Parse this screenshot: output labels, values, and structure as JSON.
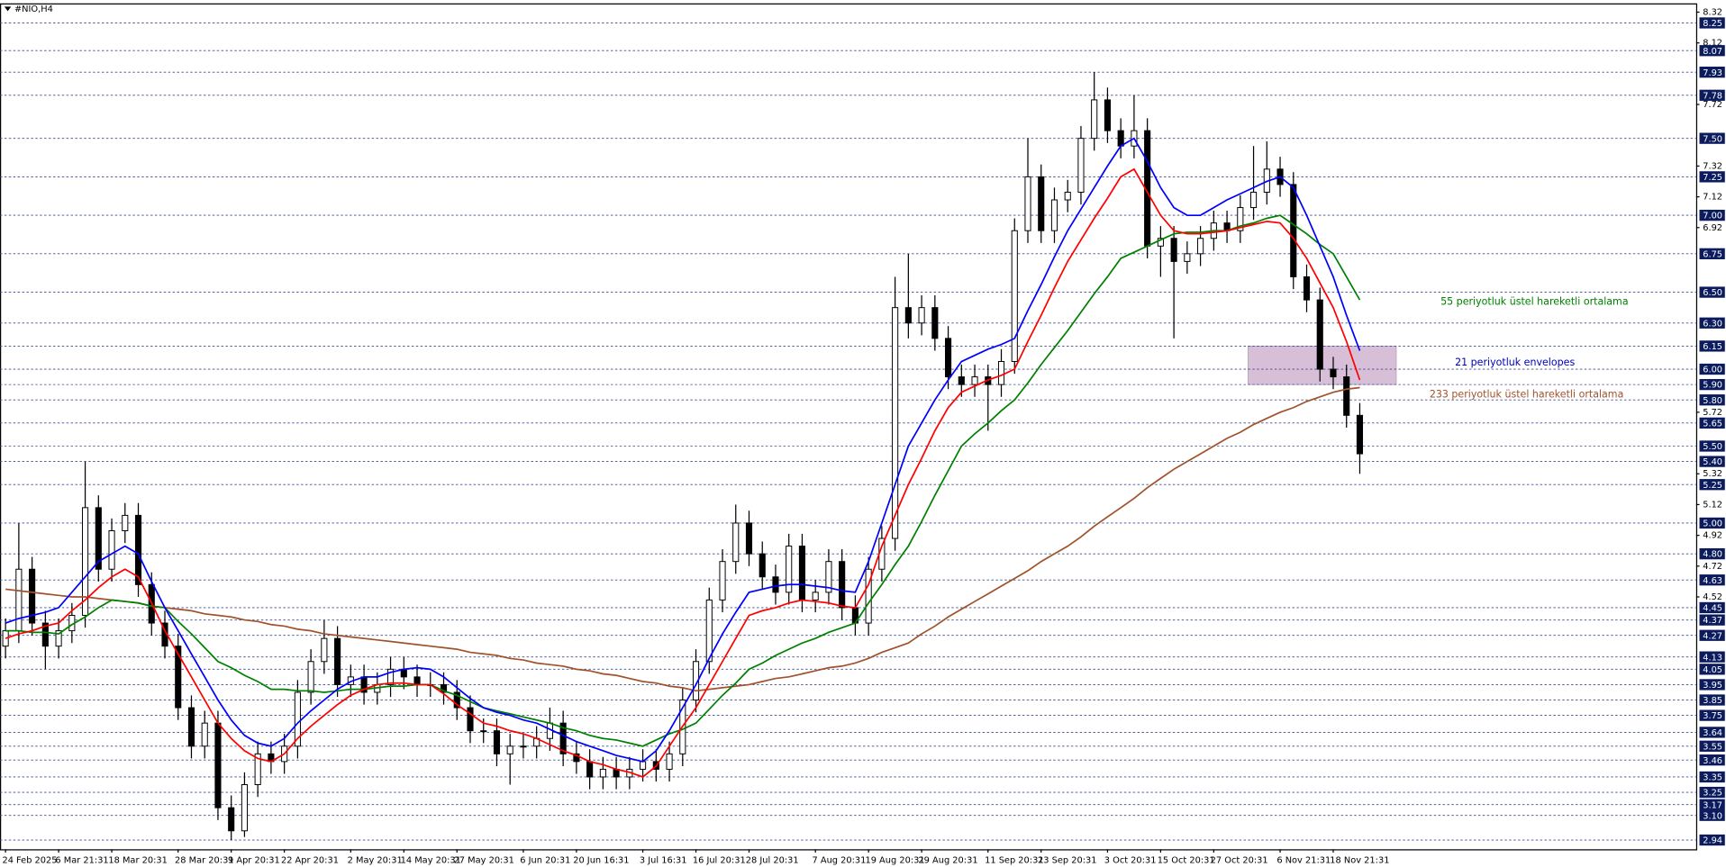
{
  "chart_data": {
    "type": "candlestick",
    "title": "#NIO,H4",
    "categories": [
      "24 Feb 2025",
      null,
      null,
      null,
      "6 Mar 21:31",
      null,
      null,
      null,
      "18 Mar 20:31",
      null,
      null,
      null,
      null,
      "28 Mar 20:31",
      null,
      null,
      null,
      "9 Apr 20:31",
      null,
      null,
      null,
      "22 Apr 20:31",
      null,
      null,
      null,
      null,
      "2 May 20:31",
      null,
      null,
      null,
      "14 May 20:31",
      null,
      null,
      null,
      "27 May 20:31",
      null,
      null,
      null,
      null,
      "6 Jun 20:31",
      null,
      null,
      null,
      "20 Jun 16:31",
      null,
      null,
      null,
      null,
      "3 Jul 16:31",
      null,
      null,
      null,
      "16 Jul 20:31",
      null,
      null,
      null,
      "28 Jul 20:31",
      null,
      null,
      null,
      null,
      "7 Aug 20:31",
      null,
      null,
      null,
      "19 Aug 20:31",
      null,
      null,
      null,
      "29 Aug 20:31",
      null,
      null,
      null,
      null,
      "11 Sep 20:31",
      null,
      null,
      null,
      "23 Sep 20:31",
      null,
      null,
      null,
      null,
      "3 Oct 20:31",
      null,
      null,
      null,
      "15 Oct 20:31",
      null,
      null,
      null,
      "27 Oct 20:31",
      null,
      null,
      null,
      null,
      "6 Nov 21:31",
      null,
      null,
      null,
      "18 Nov 21:31",
      null,
      null
    ],
    "open": [
      4.2,
      4.3,
      4.7,
      4.35,
      4.2,
      4.3,
      4.4,
      5.1,
      4.7,
      4.95,
      5.05,
      4.6,
      4.35,
      4.2,
      3.8,
      3.55,
      3.7,
      3.15,
      3.0,
      3.3,
      3.5,
      3.45,
      3.55,
      3.9,
      4.1,
      4.25,
      3.95,
      4.0,
      3.9,
      3.95,
      4.05,
      4.0,
      3.95,
      3.95,
      3.9,
      3.8,
      3.65,
      3.65,
      3.5,
      3.55,
      3.55,
      3.6,
      3.7,
      3.5,
      3.45,
      3.35,
      3.4,
      3.35,
      3.4,
      3.45,
      3.4,
      3.5,
      3.85,
      4.1,
      4.5,
      4.75,
      5.0,
      4.8,
      4.65,
      4.55,
      4.85,
      4.5,
      4.55,
      4.75,
      4.45,
      4.35,
      4.7,
      4.9,
      6.4,
      6.3,
      6.4,
      6.2,
      5.95,
      5.9,
      5.95,
      5.9,
      6.05,
      6.9,
      7.25,
      6.9,
      7.1,
      7.15,
      7.5,
      7.75,
      7.55,
      7.45,
      7.55,
      6.8,
      6.85,
      6.7,
      6.75,
      6.85,
      6.95,
      6.9,
      7.05,
      7.15,
      7.3,
      7.2,
      6.6,
      6.45,
      6.0,
      5.95,
      5.7
    ],
    "high": [
      4.38,
      5.0,
      4.78,
      4.43,
      4.38,
      4.48,
      5.4,
      5.18,
      5.03,
      5.13,
      5.13,
      4.68,
      4.43,
      4.28,
      3.88,
      3.78,
      3.78,
      3.23,
      3.38,
      3.58,
      3.58,
      3.63,
      3.98,
      4.18,
      4.37,
      4.33,
      4.08,
      4.08,
      4.03,
      4.13,
      4.13,
      4.08,
      4.03,
      4.03,
      3.98,
      3.88,
      3.73,
      3.73,
      3.63,
      3.63,
      3.68,
      3.8,
      3.78,
      3.58,
      3.53,
      3.48,
      3.48,
      3.48,
      3.53,
      3.53,
      3.58,
      3.93,
      4.18,
      4.58,
      4.83,
      5.12,
      5.08,
      4.88,
      4.73,
      4.93,
      4.93,
      4.63,
      4.83,
      4.83,
      4.53,
      4.78,
      4.98,
      6.6,
      6.75,
      6.48,
      6.48,
      6.28,
      6.03,
      6.03,
      6.03,
      6.13,
      6.98,
      7.5,
      7.33,
      7.18,
      7.23,
      7.58,
      7.93,
      7.83,
      7.63,
      7.78,
      7.63,
      6.93,
      6.93,
      6.83,
      6.93,
      7.03,
      7.03,
      7.13,
      7.45,
      7.48,
      7.38,
      7.28,
      6.68,
      6.53,
      6.08,
      6.03,
      5.78
    ],
    "low": [
      4.12,
      4.22,
      4.27,
      4.05,
      4.12,
      4.22,
      4.32,
      4.62,
      4.62,
      4.87,
      4.52,
      4.27,
      4.12,
      3.72,
      3.47,
      3.47,
      3.07,
      2.94,
      2.96,
      3.22,
      3.37,
      3.37,
      3.47,
      3.82,
      4.02,
      3.87,
      3.87,
      3.82,
      3.82,
      3.87,
      3.92,
      3.87,
      3.87,
      3.82,
      3.72,
      3.57,
      3.57,
      3.42,
      3.3,
      3.47,
      3.47,
      3.52,
      3.42,
      3.37,
      3.27,
      3.27,
      3.27,
      3.27,
      3.32,
      3.32,
      3.32,
      3.42,
      3.77,
      4.02,
      4.42,
      4.67,
      4.72,
      4.57,
      4.47,
      4.47,
      4.42,
      4.42,
      4.47,
      4.37,
      4.27,
      4.27,
      4.62,
      4.82,
      6.2,
      6.22,
      6.12,
      5.87,
      5.82,
      5.82,
      5.6,
      5.82,
      5.97,
      6.82,
      6.82,
      6.82,
      7.02,
      7.07,
      7.42,
      7.47,
      7.37,
      7.37,
      6.72,
      6.6,
      6.2,
      6.62,
      6.67,
      6.77,
      6.82,
      6.82,
      6.97,
      7.07,
      7.12,
      6.52,
      6.37,
      5.92,
      5.87,
      5.62,
      5.32
    ],
    "close": [
      4.3,
      4.7,
      4.35,
      4.2,
      4.3,
      4.4,
      5.1,
      4.7,
      4.95,
      5.05,
      4.6,
      4.35,
      4.2,
      3.8,
      3.55,
      3.7,
      3.15,
      3.0,
      3.3,
      3.5,
      3.45,
      3.55,
      3.9,
      4.1,
      4.25,
      3.95,
      4.0,
      3.9,
      3.95,
      4.05,
      4.0,
      3.95,
      3.95,
      3.9,
      3.8,
      3.65,
      3.65,
      3.5,
      3.55,
      3.55,
      3.6,
      3.7,
      3.5,
      3.45,
      3.35,
      3.4,
      3.35,
      3.4,
      3.45,
      3.4,
      3.5,
      3.85,
      4.1,
      4.5,
      4.75,
      5.0,
      4.8,
      4.65,
      4.55,
      4.85,
      4.5,
      4.55,
      4.75,
      4.45,
      4.35,
      4.7,
      4.9,
      6.4,
      6.3,
      6.4,
      6.2,
      5.95,
      5.9,
      5.95,
      5.9,
      6.05,
      6.9,
      7.25,
      6.9,
      7.1,
      7.15,
      7.5,
      7.75,
      7.55,
      7.45,
      7.55,
      6.8,
      6.85,
      6.7,
      6.75,
      6.85,
      6.95,
      6.9,
      7.05,
      7.15,
      7.3,
      7.2,
      6.6,
      6.45,
      6.0,
      5.95,
      5.7,
      5.45
    ],
    "bull_color": "#ffffff",
    "bear_color": "#000000",
    "lines": [
      {
        "name": "233 periyotluk üstel hareketli ortalama",
        "color": "#a0522d",
        "values": [
          4.57,
          4.56,
          4.55,
          4.54,
          4.53,
          4.52,
          4.52,
          4.51,
          4.5,
          4.49,
          4.48,
          4.46,
          4.45,
          4.44,
          4.43,
          4.41,
          4.4,
          4.39,
          4.37,
          4.36,
          4.34,
          4.33,
          4.31,
          4.3,
          4.28,
          4.27,
          4.26,
          4.25,
          4.24,
          4.23,
          4.22,
          4.21,
          4.2,
          4.19,
          4.18,
          4.16,
          4.15,
          4.14,
          4.12,
          4.11,
          4.09,
          4.08,
          4.07,
          4.05,
          4.04,
          4.02,
          4.01,
          3.99,
          3.97,
          3.96,
          3.94,
          3.93,
          3.91,
          3.92,
          3.93,
          3.94,
          3.95,
          3.97,
          3.99,
          4.0,
          4.02,
          4.04,
          4.06,
          4.07,
          4.09,
          4.12,
          4.16,
          4.19,
          4.22,
          4.28,
          4.33,
          4.39,
          4.44,
          4.49,
          4.54,
          4.59,
          4.64,
          4.69,
          4.75,
          4.8,
          4.85,
          4.91,
          4.98,
          5.04,
          5.1,
          5.16,
          5.23,
          5.29,
          5.35,
          5.4,
          5.45,
          5.5,
          5.55,
          5.59,
          5.64,
          5.68,
          5.72,
          5.75,
          5.79,
          5.82,
          5.85,
          5.87,
          5.88
        ]
      },
      {
        "name": "55 periyotluk üstel hareketli ortalama",
        "color": "#008000",
        "values": [
          4.3,
          4.3,
          4.29,
          4.29,
          4.28,
          4.34,
          4.39,
          4.45,
          4.5,
          4.49,
          4.48,
          4.46,
          4.45,
          4.36,
          4.28,
          4.19,
          4.1,
          4.06,
          4.01,
          3.97,
          3.92,
          3.92,
          3.91,
          3.91,
          3.9,
          3.91,
          3.92,
          3.92,
          3.93,
          3.94,
          3.94,
          3.95,
          3.95,
          3.91,
          3.88,
          3.84,
          3.8,
          3.78,
          3.76,
          3.74,
          3.72,
          3.7,
          3.67,
          3.65,
          3.62,
          3.6,
          3.59,
          3.57,
          3.55,
          3.59,
          3.63,
          3.66,
          3.7,
          3.79,
          3.88,
          3.96,
          4.05,
          4.09,
          4.14,
          4.18,
          4.22,
          4.25,
          4.29,
          4.32,
          4.35,
          4.48,
          4.6,
          4.73,
          4.85,
          5.01,
          5.18,
          5.34,
          5.5,
          5.58,
          5.65,
          5.73,
          5.8,
          5.91,
          6.03,
          6.14,
          6.25,
          6.37,
          6.49,
          6.6,
          6.72,
          6.76,
          6.8,
          6.84,
          6.88,
          6.89,
          6.89,
          6.9,
          6.9,
          6.93,
          6.95,
          6.98,
          7.0,
          6.94,
          6.88,
          6.81,
          6.75,
          6.6,
          6.45
        ]
      },
      {
        "color": "#ff0000",
        "values": [
          4.25,
          4.28,
          4.3,
          4.33,
          4.35,
          4.43,
          4.5,
          4.58,
          4.65,
          4.7,
          4.65,
          4.48,
          4.3,
          4.15,
          4.0,
          3.85,
          3.7,
          3.6,
          3.52,
          3.47,
          3.45,
          3.5,
          3.6,
          3.68,
          3.75,
          3.82,
          3.88,
          3.92,
          3.95,
          3.96,
          3.96,
          3.95,
          3.95,
          3.89,
          3.82,
          3.76,
          3.7,
          3.68,
          3.65,
          3.63,
          3.6,
          3.56,
          3.52,
          3.49,
          3.45,
          3.43,
          3.4,
          3.38,
          3.35,
          3.42,
          3.55,
          3.68,
          3.8,
          3.95,
          4.1,
          4.25,
          4.4,
          4.43,
          4.45,
          4.48,
          4.5,
          4.49,
          4.48,
          4.46,
          4.45,
          4.6,
          4.85,
          5.05,
          5.25,
          5.42,
          5.6,
          5.75,
          5.85,
          5.89,
          5.93,
          5.96,
          6.0,
          6.18,
          6.35,
          6.53,
          6.7,
          6.84,
          6.98,
          7.11,
          7.25,
          7.3,
          7.15,
          7.0,
          6.9,
          6.88,
          6.88,
          6.89,
          6.9,
          6.92,
          6.94,
          6.96,
          6.95,
          6.85,
          6.72,
          6.56,
          6.4,
          6.18,
          5.93
        ]
      },
      {
        "name": "21 periyotluk envelopes",
        "color": "#0000ff",
        "values": [
          4.35,
          4.38,
          4.4,
          4.42,
          4.45,
          4.55,
          4.65,
          4.75,
          4.8,
          4.85,
          4.8,
          4.62,
          4.45,
          4.3,
          4.15,
          4.0,
          3.85,
          3.72,
          3.62,
          3.57,
          3.55,
          3.6,
          3.7,
          3.78,
          3.85,
          3.92,
          3.97,
          4.0,
          4.0,
          4.03,
          4.05,
          4.06,
          4.05,
          4.0,
          3.93,
          3.86,
          3.8,
          3.77,
          3.75,
          3.72,
          3.7,
          3.66,
          3.62,
          3.58,
          3.55,
          3.52,
          3.49,
          3.47,
          3.45,
          3.52,
          3.65,
          3.8,
          3.95,
          4.12,
          4.28,
          4.42,
          4.55,
          4.57,
          4.59,
          4.6,
          4.6,
          4.59,
          4.58,
          4.56,
          4.55,
          4.75,
          5.0,
          5.25,
          5.5,
          5.65,
          5.8,
          5.93,
          6.05,
          6.09,
          6.13,
          6.16,
          6.2,
          6.38,
          6.55,
          6.73,
          6.9,
          7.04,
          7.18,
          7.32,
          7.45,
          7.5,
          7.35,
          7.18,
          7.05,
          7.0,
          7.0,
          7.05,
          7.1,
          7.14,
          7.18,
          7.22,
          7.25,
          7.18,
          7.0,
          6.8,
          6.6,
          6.35,
          6.12
        ]
      }
    ],
    "zone": {
      "from": 5.9,
      "to": 6.15,
      "color": "#d8bfd8"
    },
    "level_color": "#3a4a8c",
    "levels": [
      8.25,
      8.07,
      7.93,
      7.78,
      {
        "value": 7.5,
        "label": "7.50"
      },
      7.25,
      {
        "value": 7,
        "label": "7.00"
      },
      6.75,
      {
        "value": 6.5,
        "label": "6.50"
      },
      {
        "value": 6.3,
        "label": "6.30"
      },
      6.15,
      {
        "value": 6,
        "label": "6.00"
      },
      {
        "value": 5.9,
        "label": "5.90"
      },
      {
        "value": 5.8,
        "label": "5.80"
      },
      5.65,
      {
        "value": 5.5,
        "label": "5.50"
      },
      {
        "value": 5.4,
        "label": "5.40"
      },
      5.25,
      {
        "value": 5,
        "label": "5.00"
      },
      {
        "value": 4.8,
        "label": "4.80"
      },
      4.63,
      4.45,
      4.37,
      4.27,
      4.13,
      4.05,
      3.95,
      3.85,
      3.75,
      3.64,
      3.55,
      3.46,
      3.35,
      3.25,
      3.17,
      {
        "value": 3.1,
        "label": "3.10"
      },
      2.94
    ],
    "ylim": [
      2.88,
      8.37
    ],
    "yticks": [
      8.32,
      8.12,
      7.72,
      7.32,
      7.12,
      6.92,
      5.72,
      5.32,
      5.12,
      4.92,
      4.72,
      4.52
    ]
  }
}
